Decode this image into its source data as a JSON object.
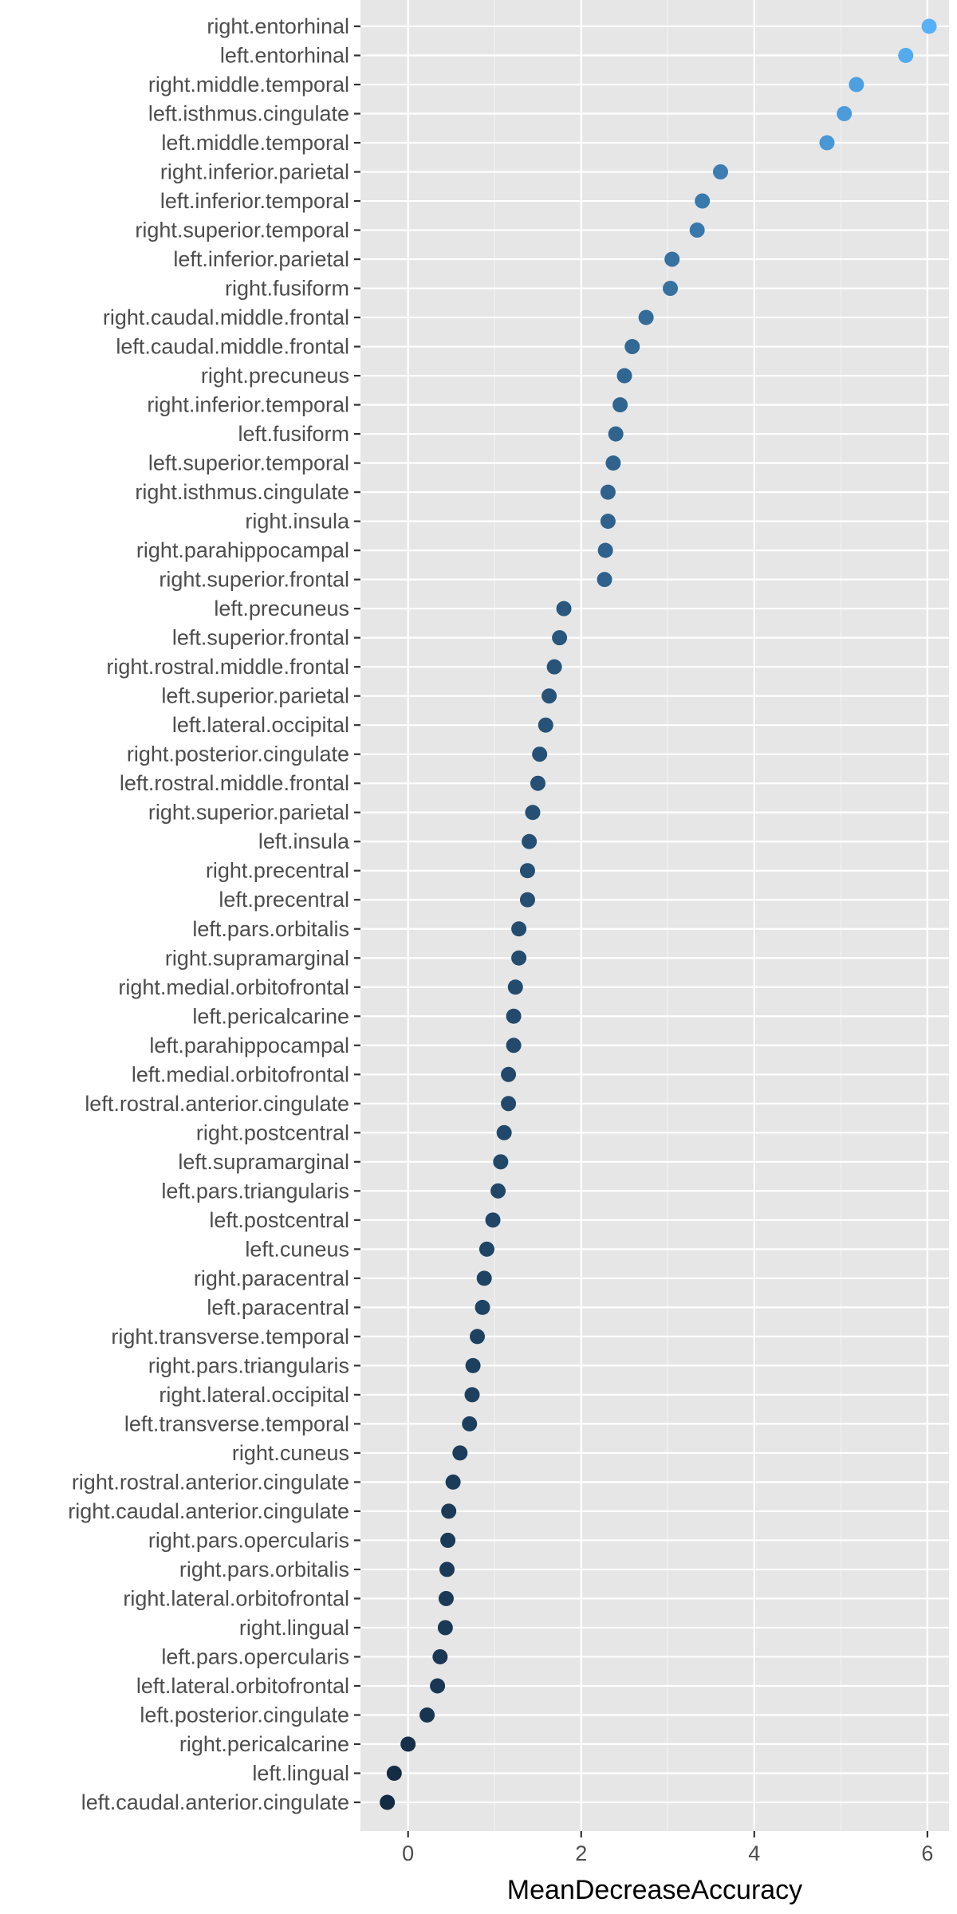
{
  "chart_data": {
    "type": "scatter",
    "orientation": "horizontal-dot",
    "xlabel": "MeanDecreaseAccuracy",
    "ylabel": "",
    "xlim": [
      -0.55,
      6.25
    ],
    "xticks": [
      0,
      2,
      4,
      6
    ],
    "grid": true,
    "color_scale": {
      "low": "#132b43",
      "high": "#56b1f7"
    },
    "categories": [
      "right.entorhinal",
      "left.entorhinal",
      "right.middle.temporal",
      "left.isthmus.cingulate",
      "left.middle.temporal",
      "right.inferior.parietal",
      "left.inferior.temporal",
      "right.superior.temporal",
      "left.inferior.parietal",
      "right.fusiform",
      "right.caudal.middle.frontal",
      "left.caudal.middle.frontal",
      "right.precuneus",
      "right.inferior.temporal",
      "left.fusiform",
      "left.superior.temporal",
      "right.isthmus.cingulate",
      "right.insula",
      "right.parahippocampal",
      "right.superior.frontal",
      "left.precuneus",
      "left.superior.frontal",
      "right.rostral.middle.frontal",
      "left.superior.parietal",
      "left.lateral.occipital",
      "right.posterior.cingulate",
      "left.rostral.middle.frontal",
      "right.superior.parietal",
      "left.insula",
      "right.precentral",
      "left.precentral",
      "left.pars.orbitalis",
      "right.supramarginal",
      "right.medial.orbitofrontal",
      "left.pericalcarine",
      "left.parahippocampal",
      "left.medial.orbitofrontal",
      "left.rostral.anterior.cingulate",
      "right.postcentral",
      "left.supramarginal",
      "left.pars.triangularis",
      "left.postcentral",
      "left.cuneus",
      "right.paracentral",
      "left.paracentral",
      "right.transverse.temporal",
      "right.pars.triangularis",
      "right.lateral.occipital",
      "left.transverse.temporal",
      "right.cuneus",
      "right.rostral.anterior.cingulate",
      "right.caudal.anterior.cingulate",
      "right.pars.opercularis",
      "right.pars.orbitalis",
      "right.lateral.orbitofrontal",
      "right.lingual",
      "left.pars.opercularis",
      "left.lateral.orbitofrontal",
      "left.posterior.cingulate",
      "right.pericalcarine",
      "left.lingual",
      "left.caudal.anterior.cingulate"
    ],
    "values": [
      6.02,
      5.75,
      5.18,
      5.04,
      4.84,
      3.61,
      3.4,
      3.34,
      3.05,
      3.03,
      2.75,
      2.59,
      2.5,
      2.45,
      2.4,
      2.37,
      2.31,
      2.31,
      2.28,
      2.27,
      1.8,
      1.75,
      1.69,
      1.63,
      1.59,
      1.52,
      1.5,
      1.44,
      1.4,
      1.38,
      1.38,
      1.28,
      1.28,
      1.24,
      1.22,
      1.22,
      1.16,
      1.16,
      1.11,
      1.07,
      1.04,
      0.98,
      0.91,
      0.88,
      0.86,
      0.8,
      0.75,
      0.74,
      0.71,
      0.6,
      0.52,
      0.47,
      0.46,
      0.45,
      0.44,
      0.43,
      0.37,
      0.34,
      0.22,
      0.0,
      -0.16,
      -0.24
    ]
  }
}
